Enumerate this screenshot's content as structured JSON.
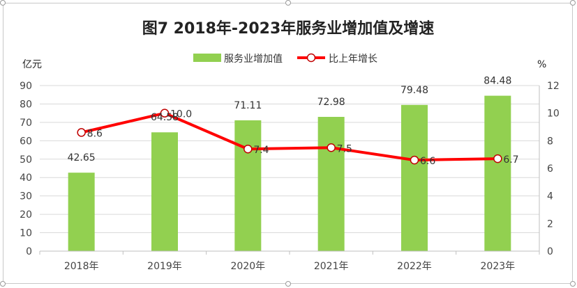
{
  "chart_data": {
    "type": "bar+line",
    "title": "图7 2018年-2023年服务业增加值及增速",
    "categories": [
      "2018年",
      "2019年",
      "2020年",
      "2021年",
      "2022年",
      "2023年"
    ],
    "series": [
      {
        "name": "服务业增加值",
        "type": "bar",
        "axis": "left",
        "color": "#92d050",
        "values": [
          42.65,
          64.58,
          71.11,
          72.98,
          79.48,
          84.48
        ],
        "labels": [
          "42.65",
          "64.58",
          "71.11",
          "72.98",
          "79.48",
          "84.48"
        ]
      },
      {
        "name": "比上年增长",
        "type": "line",
        "axis": "right",
        "color": "#ff0000",
        "values": [
          8.6,
          10.0,
          7.4,
          7.5,
          6.6,
          6.7
        ],
        "labels": [
          "8.6",
          "10.0",
          "7.4",
          "7.5",
          "6.6",
          "6.7"
        ]
      }
    ],
    "y_left": {
      "unit": "亿元",
      "min": 0,
      "max": 90,
      "step": 10
    },
    "y_right": {
      "unit": "%",
      "min": 0,
      "max": 12,
      "step": 2
    },
    "legend_position": "top",
    "grid": true
  }
}
